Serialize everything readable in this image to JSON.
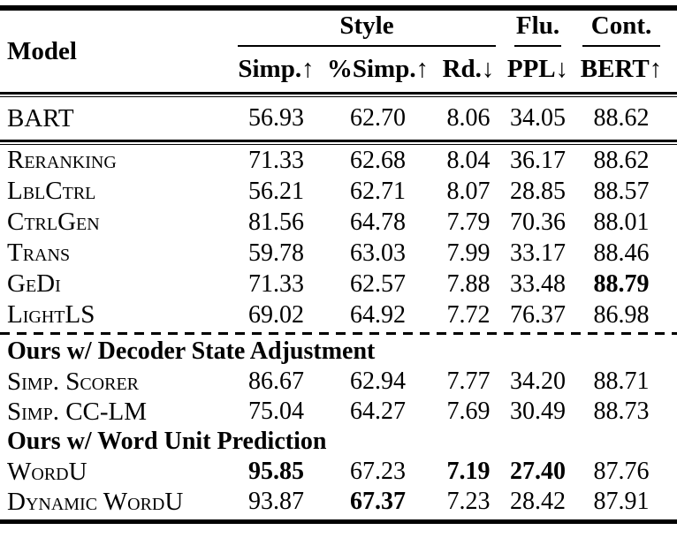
{
  "colors": {
    "background": "#ffffff",
    "text": "#000000",
    "rule": "#000000"
  },
  "table": {
    "model_col_label": "Model",
    "groups": [
      {
        "label": "Style",
        "span": 3
      },
      {
        "label": "Flu.",
        "span": 1
      },
      {
        "label": "Cont.",
        "span": 1
      }
    ],
    "columns": [
      "Simp.↑",
      "%Simp.↑",
      "Rd.↓",
      "PPL↓",
      "BERT↑"
    ],
    "sections": [
      {
        "heading": null,
        "rule_after": "double",
        "rows": [
          {
            "model": "BART",
            "values": [
              "56.93",
              "62.70",
              "8.06",
              "34.05",
              "88.62"
            ],
            "bold": [
              false,
              false,
              false,
              false,
              false
            ]
          }
        ]
      },
      {
        "heading": null,
        "rule_after": "dashed",
        "rows": [
          {
            "model": "Reranking",
            "values": [
              "71.33",
              "62.68",
              "8.04",
              "36.17",
              "88.62"
            ],
            "bold": [
              false,
              false,
              false,
              false,
              false
            ]
          },
          {
            "model": "LblCtrl",
            "values": [
              "56.21",
              "62.71",
              "8.07",
              "28.85",
              "88.57"
            ],
            "bold": [
              false,
              false,
              false,
              false,
              false
            ]
          },
          {
            "model": "CtrlGen",
            "values": [
              "81.56",
              "64.78",
              "7.79",
              "70.36",
              "88.01"
            ],
            "bold": [
              false,
              false,
              false,
              false,
              false
            ]
          },
          {
            "model": "Trans",
            "values": [
              "59.78",
              "63.03",
              "7.99",
              "33.17",
              "88.46"
            ],
            "bold": [
              false,
              false,
              false,
              false,
              false
            ]
          },
          {
            "model": "GeDi",
            "values": [
              "71.33",
              "62.57",
              "7.88",
              "33.48",
              "88.79"
            ],
            "bold": [
              false,
              false,
              false,
              false,
              true
            ]
          },
          {
            "model": "LightLS",
            "values": [
              "69.02",
              "64.92",
              "7.72",
              "76.37",
              "86.98"
            ],
            "bold": [
              false,
              false,
              false,
              false,
              false
            ]
          }
        ]
      },
      {
        "heading": "Ours w/ Decoder State Adjustment",
        "rule_after": null,
        "rows": [
          {
            "model": "Simp. Scorer",
            "values": [
              "86.67",
              "62.94",
              "7.77",
              "34.20",
              "88.71"
            ],
            "bold": [
              false,
              false,
              false,
              false,
              false
            ]
          },
          {
            "model": "Simp. CC-LM",
            "values": [
              "75.04",
              "64.27",
              "7.69",
              "30.49",
              "88.73"
            ],
            "bold": [
              false,
              false,
              false,
              false,
              false
            ]
          }
        ]
      },
      {
        "heading": "Ours w/ Word Unit Prediction",
        "rule_after": null,
        "rows": [
          {
            "model": "WordU",
            "values": [
              "95.85",
              "67.23",
              "7.19",
              "27.40",
              "87.76"
            ],
            "bold": [
              true,
              false,
              true,
              true,
              false
            ]
          },
          {
            "model": "Dynamic WordU",
            "values": [
              "93.87",
              "67.37",
              "7.23",
              "28.42",
              "87.91"
            ],
            "bold": [
              false,
              true,
              false,
              false,
              false
            ]
          }
        ]
      }
    ]
  }
}
